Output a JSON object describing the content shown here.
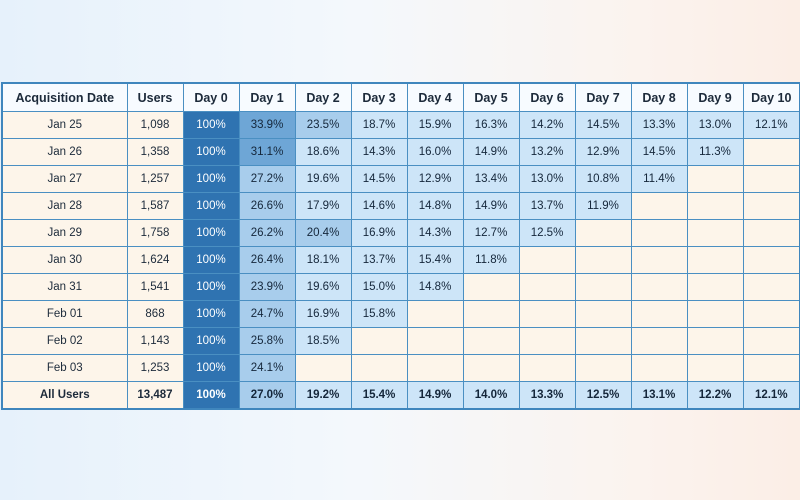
{
  "colors": {
    "day0": "#2f73b1",
    "day1_high": "#6ea6d6",
    "day1_low": "#a8cdec",
    "medium": "#a8cdec",
    "light": "#cde5f8",
    "empty": "#fdf5ea",
    "header_bg": "#f7fbff",
    "border": "#4a8fc2"
  },
  "chart_data": {
    "type": "table",
    "columns": [
      "Acquisition Date",
      "Users",
      "Day 0",
      "Day 1",
      "Day 2",
      "Day 3",
      "Day 4",
      "Day 5",
      "Day 6",
      "Day 7",
      "Day 8",
      "Day 9",
      "Day 10"
    ],
    "rows": [
      {
        "date": "Jan 25",
        "users": "1,098",
        "values": [
          "100%",
          "33.9%",
          "23.5%",
          "18.7%",
          "15.9%",
          "16.3%",
          "14.2%",
          "14.5%",
          "13.3%",
          "13.0%",
          "12.1%"
        ]
      },
      {
        "date": "Jan 26",
        "users": "1,358",
        "values": [
          "100%",
          "31.1%",
          "18.6%",
          "14.3%",
          "16.0%",
          "14.9%",
          "13.2%",
          "12.9%",
          "14.5%",
          "11.3%"
        ]
      },
      {
        "date": "Jan 27",
        "users": "1,257",
        "values": [
          "100%",
          "27.2%",
          "19.6%",
          "14.5%",
          "12.9%",
          "13.4%",
          "13.0%",
          "10.8%",
          "11.4%"
        ]
      },
      {
        "date": "Jan 28",
        "users": "1,587",
        "values": [
          "100%",
          "26.6%",
          "17.9%",
          "14.6%",
          "14.8%",
          "14.9%",
          "13.7%",
          "11.9%"
        ]
      },
      {
        "date": "Jan 29",
        "users": "1,758",
        "values": [
          "100%",
          "26.2%",
          "20.4%",
          "16.9%",
          "14.3%",
          "12.7%",
          "12.5%"
        ]
      },
      {
        "date": "Jan 30",
        "users": "1,624",
        "values": [
          "100%",
          "26.4%",
          "18.1%",
          "13.7%",
          "15.4%",
          "11.8%"
        ]
      },
      {
        "date": "Jan 31",
        "users": "1,541",
        "values": [
          "100%",
          "23.9%",
          "19.6%",
          "15.0%",
          "14.8%"
        ]
      },
      {
        "date": "Feb 01",
        "users": "868",
        "values": [
          "100%",
          "24.7%",
          "16.9%",
          "15.8%"
        ]
      },
      {
        "date": "Feb 02",
        "users": "1,143",
        "values": [
          "100%",
          "25.8%",
          "18.5%"
        ]
      },
      {
        "date": "Feb 03",
        "users": "1,253",
        "values": [
          "100%",
          "24.1%"
        ]
      }
    ],
    "total": {
      "date": "All Users",
      "users": "13,487",
      "values": [
        "100%",
        "27.0%",
        "19.2%",
        "15.4%",
        "14.9%",
        "14.0%",
        "13.3%",
        "12.5%",
        "13.1%",
        "12.2%",
        "12.1%"
      ]
    }
  }
}
